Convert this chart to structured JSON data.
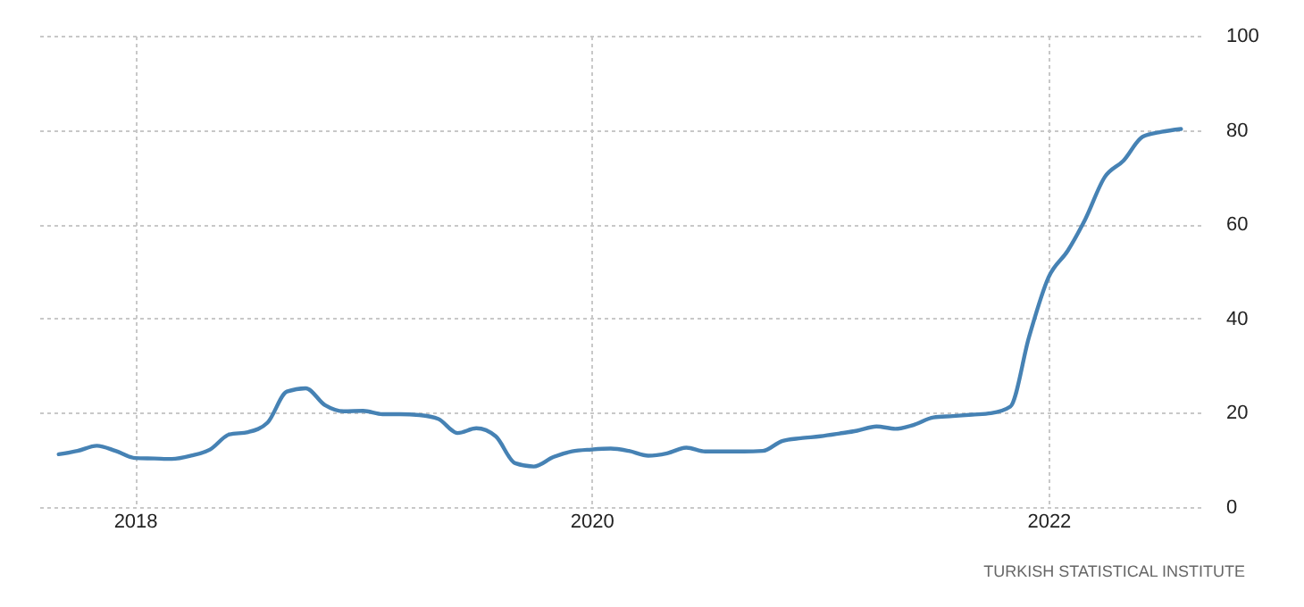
{
  "chart_data": {
    "type": "line",
    "annotations": [
      "TURKISH STATISTICAL INSTITUTE"
    ],
    "x": [
      "2017-09",
      "2017-10",
      "2017-11",
      "2017-12",
      "2018-01",
      "2018-02",
      "2018-03",
      "2018-04",
      "2018-05",
      "2018-06",
      "2018-07",
      "2018-08",
      "2018-09",
      "2018-10",
      "2018-11",
      "2018-12",
      "2019-01",
      "2019-02",
      "2019-03",
      "2019-04",
      "2019-05",
      "2019-06",
      "2019-07",
      "2019-08",
      "2019-09",
      "2019-10",
      "2019-11",
      "2019-12",
      "2020-01",
      "2020-02",
      "2020-03",
      "2020-04",
      "2020-05",
      "2020-06",
      "2020-07",
      "2020-08",
      "2020-09",
      "2020-10",
      "2020-11",
      "2020-12",
      "2021-01",
      "2021-02",
      "2021-03",
      "2021-04",
      "2021-05",
      "2021-06",
      "2021-07",
      "2021-08",
      "2021-09",
      "2021-10",
      "2021-11",
      "2021-12",
      "2022-01",
      "2022-02",
      "2022-03",
      "2022-04",
      "2022-05",
      "2022-06",
      "2022-07",
      "2022-08"
    ],
    "series": [
      {
        "color": "#4682b4",
        "values": [
          11.2,
          11.9,
          13.0,
          11.9,
          10.4,
          10.3,
          10.2,
          10.9,
          12.2,
          15.4,
          15.9,
          17.9,
          24.5,
          25.2,
          21.6,
          20.3,
          20.4,
          19.7,
          19.7,
          19.5,
          18.7,
          15.7,
          16.7,
          15.0,
          9.3,
          8.6,
          10.6,
          11.8,
          12.2,
          12.4,
          11.9,
          10.9,
          11.4,
          12.6,
          11.8,
          11.8,
          11.8,
          11.9,
          14.0,
          14.6,
          15.0,
          15.6,
          16.2,
          17.1,
          16.6,
          17.5,
          19.0,
          19.3,
          19.6,
          19.9,
          21.3,
          36.1,
          48.7,
          54.4,
          61.1,
          70.0,
          73.5,
          78.6,
          79.6,
          80.2
        ]
      }
    ],
    "xlim": [
      "2017-08-01",
      "2022-09-01"
    ],
    "xticks": [
      "2018",
      "2020",
      "2022"
    ],
    "ylim": [
      0,
      100
    ],
    "yticks": [
      0,
      20,
      40,
      60,
      80,
      100
    ],
    "grid": true,
    "line_style": "solid",
    "marker": "none"
  }
}
